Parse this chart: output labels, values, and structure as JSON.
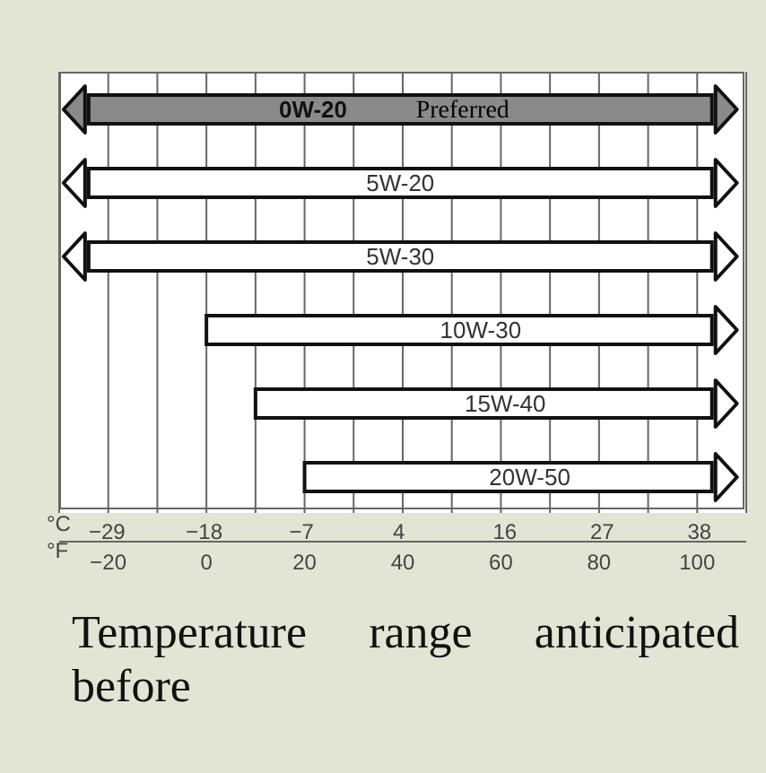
{
  "chart_data": {
    "type": "bar",
    "orientation": "horizontal",
    "categories": [
      "0W-20",
      "5W-20",
      "5W-30",
      "10W-30",
      "15W-40",
      "20W-50"
    ],
    "base": [
      -24,
      -24,
      -24,
      0,
      10,
      20
    ],
    "values": [
      127,
      127,
      127,
      103,
      93,
      83
    ],
    "colors": [
      "#8a8a8a",
      "#ffffff",
      "#ffffff",
      "#ffffff",
      "#ffffff",
      "#ffffff"
    ],
    "xlim": [
      -30,
      110
    ],
    "xticks": [
      -20,
      {
        "value": -10,
        "label": null
      },
      0,
      {
        "value": 10,
        "label": null
      },
      20,
      {
        "value": 30,
        "label": null
      },
      40,
      {
        "value": 50,
        "label": null
      },
      60,
      {
        "value": 70,
        "label": null
      },
      80,
      {
        "value": 90,
        "label": null
      },
      100
    ],
    "xlabel": "°F",
    "x2lim": [
      -34.4,
      43.3
    ],
    "x2ticks": [
      -29,
      -18,
      -7,
      4,
      16,
      27,
      38
    ],
    "x2label": "°C",
    "grid": "x",
    "annotations": [
      "Preferred",
      "Temperature range anticipated before"
    ]
  }
}
